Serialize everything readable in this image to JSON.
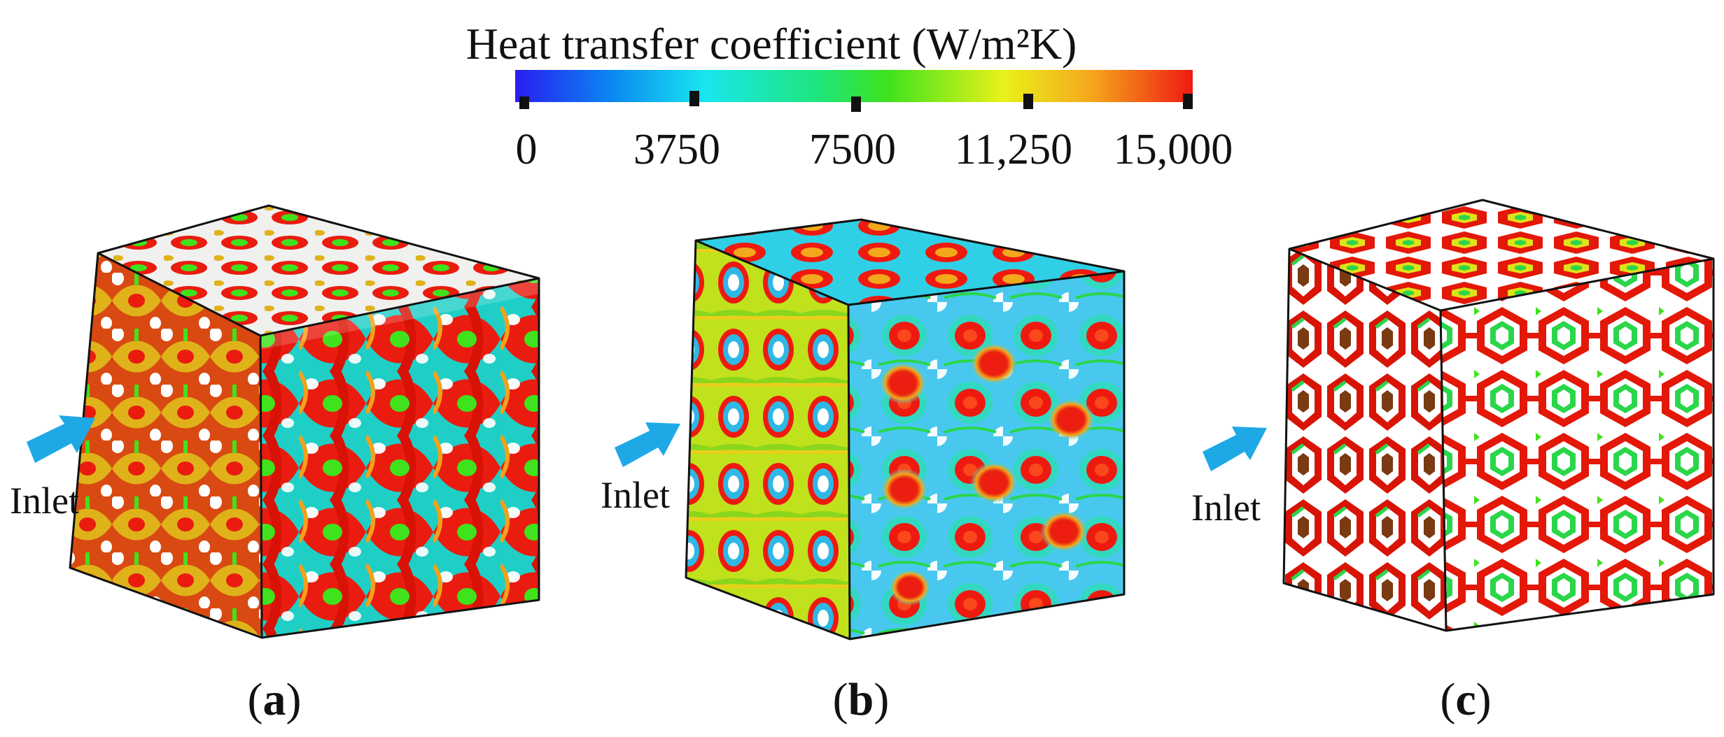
{
  "colorbar": {
    "title": "Heat transfer coefficient (W/m²K)",
    "ticks": [
      "0",
      "3750",
      "7500",
      "11,250",
      "15,000"
    ],
    "colors": [
      "#2a1cf0",
      "#0a86f2",
      "#19e6ee",
      "#1ee67a",
      "#3fe21c",
      "#e8f21a",
      "#f6a71c",
      "#ee1a12"
    ]
  },
  "panels": [
    {
      "caption_open": "(",
      "caption_letter": "a",
      "caption_close": ")",
      "inlet_label": "Inlet",
      "structure": "gyroid-like TPMS lattice"
    },
    {
      "caption_open": "(",
      "caption_letter": "b",
      "caption_close": ")",
      "inlet_label": "Inlet",
      "structure": "Schwarz-P-like TPMS lattice"
    },
    {
      "caption_open": "(",
      "caption_letter": "c",
      "caption_close": ")",
      "inlet_label": "Inlet",
      "structure": "hexagonal strut lattice"
    }
  ],
  "arrow_color": "#1ea9e6"
}
